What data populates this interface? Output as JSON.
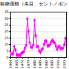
{
  "chart_data": {
    "type": "line",
    "title": "粗糖価格（名目、セント／ポンド）",
    "x": [
      1960,
      1961,
      1962,
      1963,
      1964,
      1965,
      1966,
      1967,
      1968,
      1969,
      1970,
      1971,
      1972,
      1973,
      1974,
      1975,
      1976,
      1977,
      1978,
      1979,
      1980,
      1981,
      1982,
      1983,
      1984,
      1985,
      1986,
      1987,
      1988,
      1989,
      1990,
      1991,
      1992,
      1993,
      1994,
      1995,
      1996,
      1997,
      1998,
      1999,
      2000,
      2001,
      2002,
      2003,
      2004,
      2005,
      2006,
      2007
    ],
    "values": [
      3.1,
      2.9,
      3.0,
      8.5,
      5.9,
      2.1,
      1.9,
      2.0,
      2.0,
      3.4,
      3.8,
      4.5,
      7.4,
      9.6,
      29.7,
      20.4,
      11.5,
      8.1,
      7.8,
      9.7,
      28.7,
      16.9,
      8.4,
      8.5,
      5.2,
      4.1,
      6.1,
      6.8,
      10.2,
      12.8,
      12.6,
      9.0,
      9.1,
      10.0,
      12.1,
      13.4,
      12.2,
      11.4,
      8.9,
      6.3,
      8.2,
      8.6,
      6.9,
      7.1,
      7.2,
      9.9,
      14.8,
      10.1
    ],
    "color": "#ff00ff",
    "marker": "diamond",
    "xlim": [
      1960,
      2007
    ],
    "xticks": [
      1960,
      1965,
      1970,
      1975,
      1980,
      1985,
      1990,
      1995,
      2000,
      2005
    ],
    "ylim": [
      0,
      35
    ],
    "yticks": [
      0,
      5,
      10,
      15,
      20,
      25,
      30,
      35
    ],
    "grid": true
  }
}
